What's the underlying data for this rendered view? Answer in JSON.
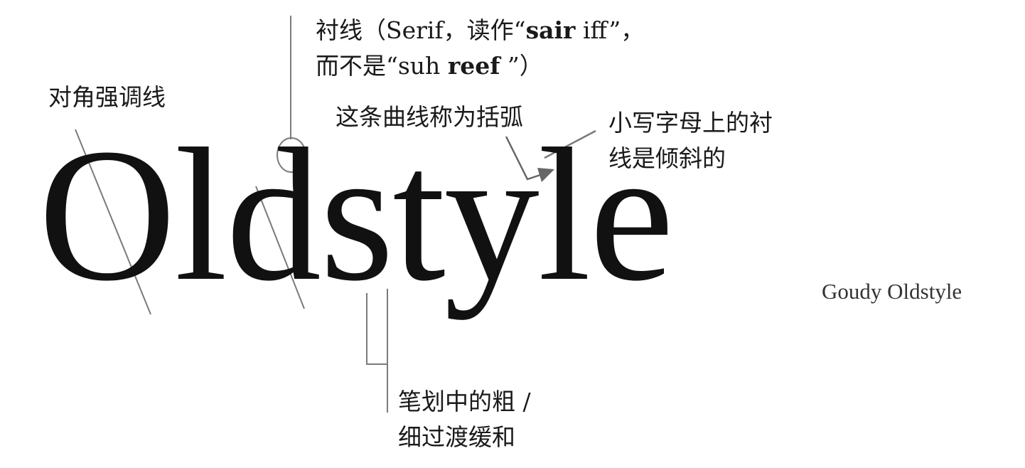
{
  "specimen_word": "Oldstyle",
  "font_name": "Goudy Oldstyle",
  "colors": {
    "text": "#1a1a1a",
    "guide_line": "#7a7a7a",
    "arrow": "#666666"
  },
  "annotations": {
    "diagonal_stress": "对角强调线",
    "serif_line1_pre": "衬线（Serif，读作“",
    "serif_line1_bold": "sair",
    "serif_line1_post": " iff”，",
    "serif_line2_pre": "而不是“suh ",
    "serif_line2_bold": "reef",
    "serif_line2_post": " ”）",
    "bracket": "这条曲线称为括弧",
    "slanted_serif_line1": "小写字母上的衬",
    "slanted_serif_line2": "线是倾斜的",
    "transition_line1": "笔划中的粗 /",
    "transition_line2": "细过渡缓和"
  }
}
